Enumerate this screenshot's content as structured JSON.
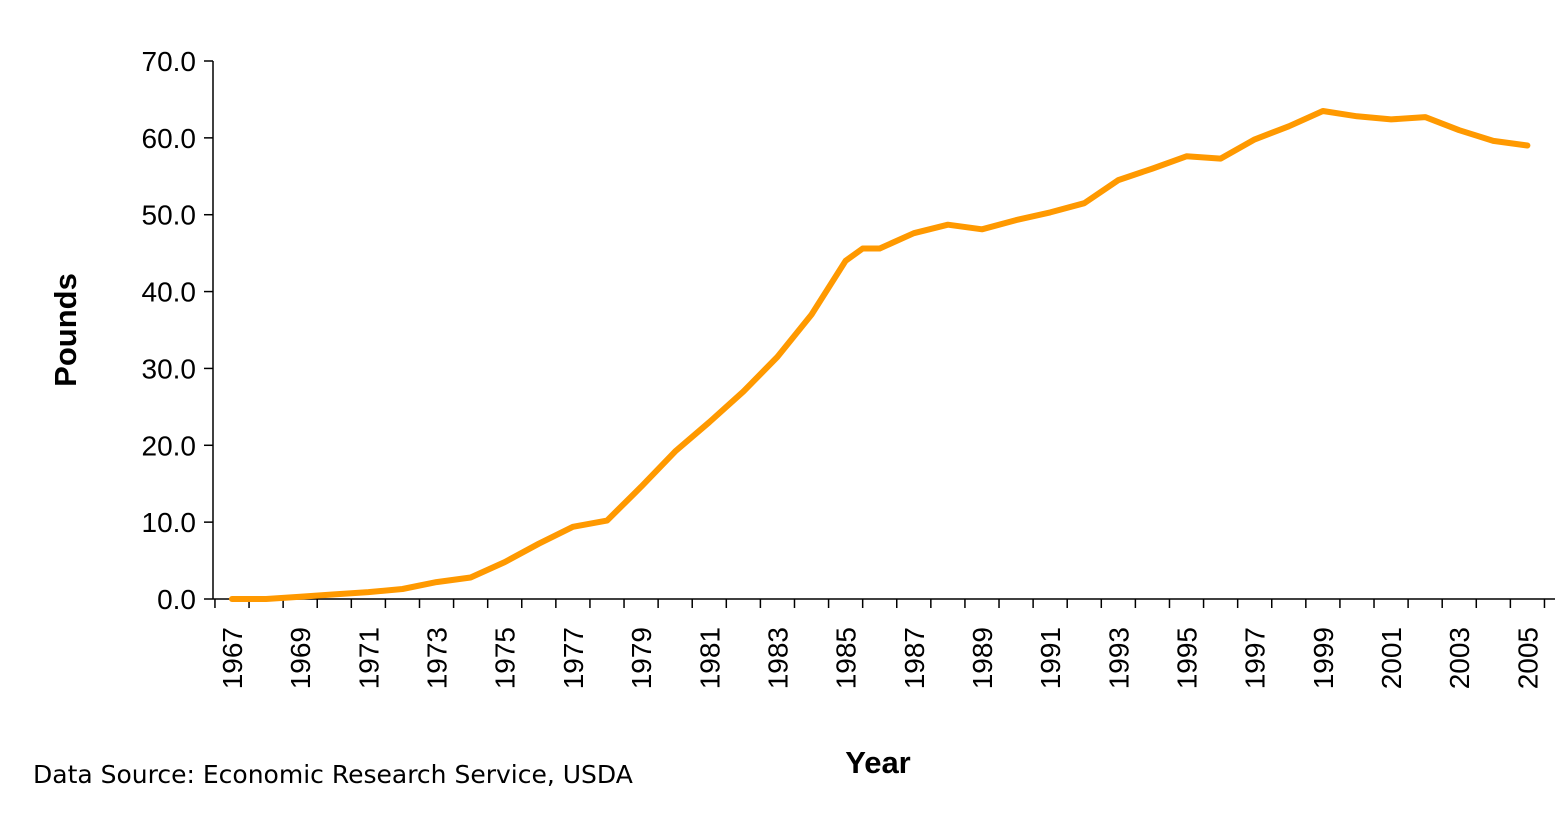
{
  "source_note": "Data Source: Economic Research Service, USDA",
  "chart_data": {
    "type": "line",
    "xlabel": "Year",
    "ylabel": "Pounds",
    "ylim": [
      0,
      70
    ],
    "y_ticks": [
      "0.0",
      "10.0",
      "20.0",
      "30.0",
      "40.0",
      "50.0",
      "60.0",
      "70.0"
    ],
    "x_tick_labels": [
      "1967",
      "1969",
      "1971",
      "1973",
      "1975",
      "1977",
      "1979",
      "1981",
      "1983",
      "1985",
      "1987",
      "1989",
      "1991",
      "1993",
      "1995",
      "1997",
      "1999",
      "2001",
      "2003",
      "2005"
    ],
    "x_range": [
      1967,
      2005
    ],
    "grid": false,
    "legend": "none",
    "line_color": "#FF9900",
    "series": [
      {
        "x": [
          1967,
          1968,
          1969,
          1970,
          1971,
          1972,
          1973,
          1974,
          1975,
          1976,
          1977,
          1978,
          1979,
          1980,
          1981,
          1982,
          1983,
          1984,
          1985,
          1985.5,
          1986,
          1987,
          1988,
          1989,
          1990,
          1991,
          1992,
          1993,
          1994,
          1995,
          1996,
          1997,
          1998,
          1999,
          2000,
          2001,
          2002,
          2003,
          2004,
          2005
        ],
        "y": [
          0.0,
          0.0,
          0.3,
          0.6,
          0.9,
          1.3,
          2.2,
          2.8,
          4.8,
          7.2,
          9.4,
          10.2,
          14.6,
          19.2,
          23.0,
          27.0,
          31.5,
          37.0,
          44.0,
          45.6,
          45.6,
          47.6,
          48.7,
          48.1,
          49.3,
          50.3,
          51.5,
          54.5,
          56.0,
          57.6,
          57.3,
          59.8,
          61.5,
          63.5,
          62.8,
          62.4,
          62.7,
          61.0,
          59.6,
          59.0
        ]
      }
    ]
  }
}
